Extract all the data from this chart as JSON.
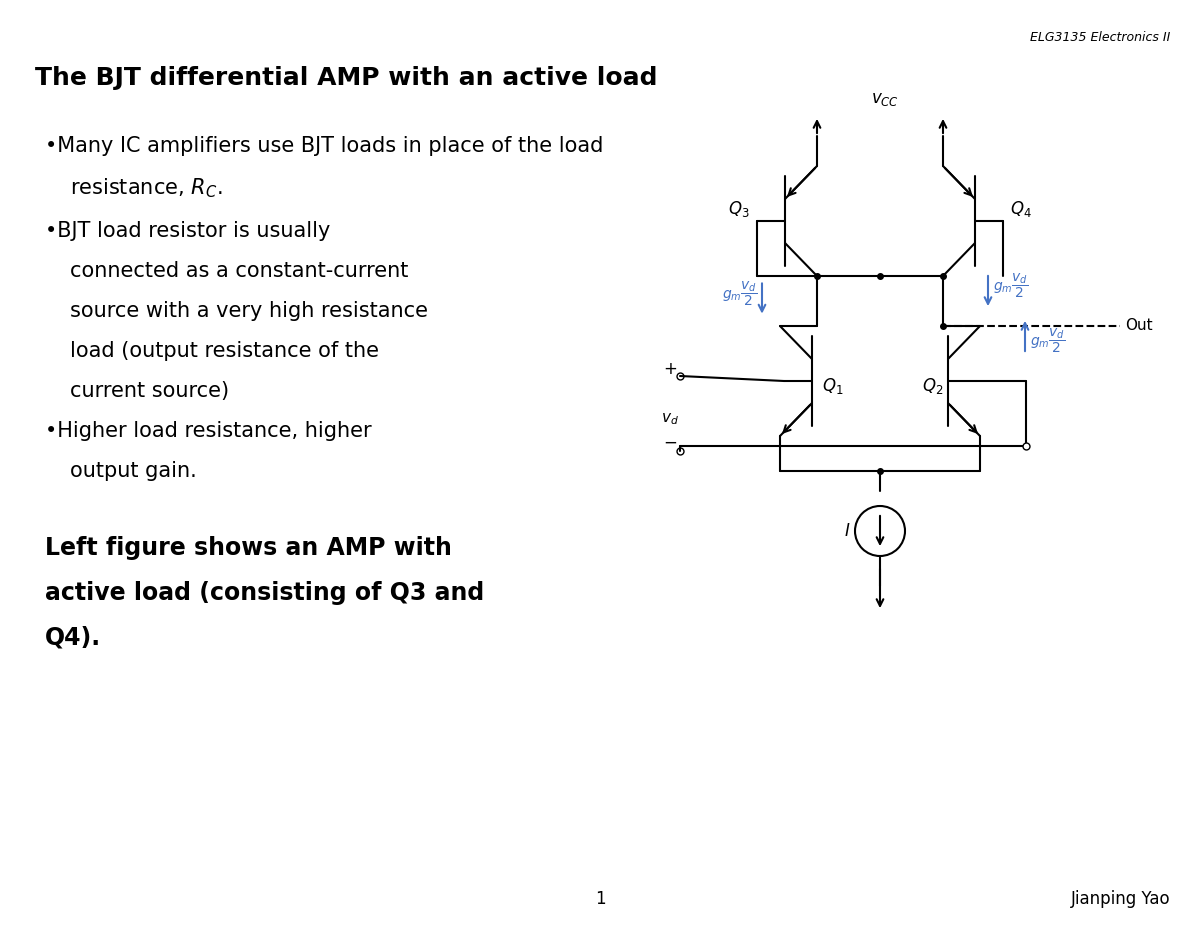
{
  "title": "The BJT differential AMP with an active load",
  "header_text": "ELG3135 Electronics II",
  "bullet1_line1": "•Many IC amplifiers use BJT loads in place of the load",
  "bullet1_line2": "resistance, $R_C$.",
  "bullet2_line1": "•BJT load resistor is usually",
  "bullet2_line2": "connected as a constant-current",
  "bullet2_line3": "source with a very high resistance",
  "bullet2_line4": "load (output resistance of the",
  "bullet2_line5": "current source)",
  "bullet3_line1": "•Higher load resistance, higher",
  "bullet3_line2": "output gain.",
  "bold_text_line1": "Left figure shows an AMP with",
  "bold_text_line2": "active load (consisting of Q3 and",
  "bold_text_line3": "Q4).",
  "footer_page": "1",
  "footer_author": "Jianping Yao",
  "bg_color": "#ffffff",
  "text_color": "#000000",
  "blue_color": "#4472c4",
  "circuit_color": "#000000"
}
